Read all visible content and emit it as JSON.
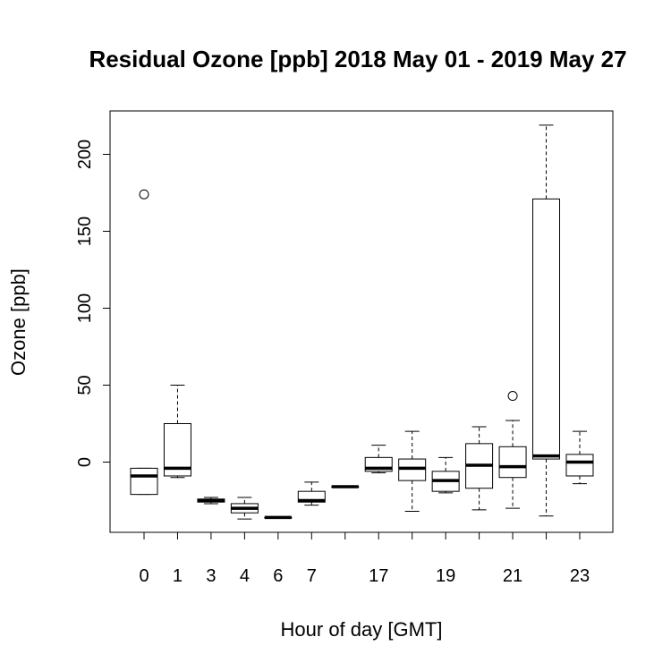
{
  "chart_data": {
    "type": "box",
    "title": "Residual Ozone [ppb] 2018 May 01 - 2019 May 27",
    "xlabel": "Hour of day [GMT]",
    "ylabel": "Ozone [ppb]",
    "ylim": [
      -45,
      228
    ],
    "yticks": [
      0,
      50,
      100,
      150,
      200
    ],
    "grid": false,
    "groups": [
      {
        "label": "0",
        "whisker_low": -21,
        "q1": -21,
        "median": -9,
        "q3": -4,
        "whisker_high": -4,
        "outliers": [
          174
        ]
      },
      {
        "label": "1",
        "whisker_low": -10,
        "q1": -9,
        "median": -4,
        "q3": 25,
        "whisker_high": 50,
        "outliers": []
      },
      {
        "label": "3",
        "whisker_low": -27,
        "q1": -26,
        "median": -25,
        "q3": -24,
        "whisker_high": -23,
        "outliers": []
      },
      {
        "label": "4",
        "whisker_low": -37,
        "q1": -33,
        "median": -30,
        "q3": -27,
        "whisker_high": -23,
        "outliers": []
      },
      {
        "label": "6",
        "whisker_low": -36,
        "q1": -36,
        "median": -36,
        "q3": -36,
        "whisker_high": -36,
        "outliers": []
      },
      {
        "label": "7",
        "whisker_low": -28,
        "q1": -26,
        "median": -25,
        "q3": -19,
        "whisker_high": -13,
        "outliers": []
      },
      {
        "label": "",
        "whisker_low": -16,
        "q1": -16,
        "median": -16,
        "q3": -16,
        "whisker_high": -16,
        "outliers": []
      },
      {
        "label": "17",
        "whisker_low": -7,
        "q1": -6,
        "median": -4,
        "q3": 3,
        "whisker_high": 11,
        "outliers": []
      },
      {
        "label": "",
        "whisker_low": -32,
        "q1": -12,
        "median": -4,
        "q3": 2,
        "whisker_high": 20,
        "outliers": []
      },
      {
        "label": "19",
        "whisker_low": -20,
        "q1": -19,
        "median": -12,
        "q3": -6,
        "whisker_high": 3,
        "outliers": []
      },
      {
        "label": "",
        "whisker_low": -31,
        "q1": -17,
        "median": -2,
        "q3": 12,
        "whisker_high": 23,
        "outliers": []
      },
      {
        "label": "21",
        "whisker_low": -30,
        "q1": -10,
        "median": -3,
        "q3": 10,
        "whisker_high": 27,
        "outliers": [
          43
        ]
      },
      {
        "label": "",
        "whisker_low": -35,
        "q1": 2,
        "median": 4,
        "q3": 171,
        "whisker_high": 219,
        "outliers": []
      },
      {
        "label": "23",
        "whisker_low": -14,
        "q1": -9,
        "median": 0,
        "q3": 5,
        "whisker_high": 20,
        "outliers": []
      }
    ]
  }
}
